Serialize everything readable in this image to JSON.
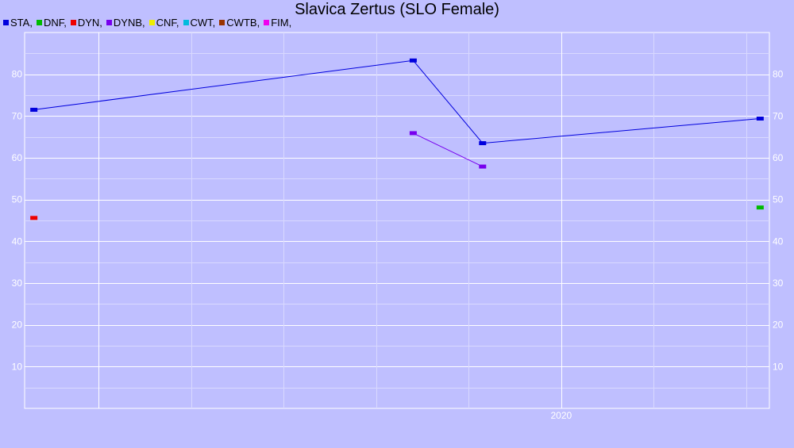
{
  "chart_data": {
    "type": "line",
    "title": "Slavica Zertus (SLO Female)",
    "xlabel": "",
    "ylabel": "",
    "ylim": [
      0,
      90
    ],
    "yticks": [
      10,
      20,
      30,
      40,
      50,
      60,
      70,
      80
    ],
    "xlim": [
      2014.2,
      2022.25
    ],
    "xticks": [
      {
        "value": 2020,
        "label": "2020"
      }
    ],
    "grid": true,
    "legend_position": "top-left",
    "legend": [
      {
        "name": "STA",
        "label": "STA,",
        "color": "#0000dd"
      },
      {
        "name": "DNF",
        "label": "DNF,",
        "color": "#00bb00"
      },
      {
        "name": "DYN",
        "label": "DYN,",
        "color": "#ee0000"
      },
      {
        "name": "DYNB",
        "label": "DYNB,",
        "color": "#7700ee"
      },
      {
        "name": "CNF",
        "label": "CNF,",
        "color": "#eeee00"
      },
      {
        "name": "CWT",
        "label": "CWT,",
        "color": "#00bbdd"
      },
      {
        "name": "CWTB",
        "label": "CWTB,",
        "color": "#993300"
      },
      {
        "name": "FIM",
        "label": "FIM,",
        "color": "#ee00ee"
      }
    ],
    "series": [
      {
        "name": "STA",
        "color": "#0000dd",
        "points": [
          [
            2014.3,
            71.5
          ],
          [
            2018.4,
            83.3
          ],
          [
            2019.15,
            63.5
          ],
          [
            2022.15,
            69.4
          ]
        ]
      },
      {
        "name": "DNF",
        "color": "#00bb00",
        "points": [
          [
            2022.15,
            48.1
          ]
        ]
      },
      {
        "name": "DYN",
        "color": "#ee0000",
        "points": [
          [
            2014.3,
            45.6
          ]
        ]
      },
      {
        "name": "DYNB",
        "color": "#7700ee",
        "points": [
          [
            2018.4,
            65.9
          ],
          [
            2019.15,
            57.9
          ]
        ]
      }
    ]
  }
}
